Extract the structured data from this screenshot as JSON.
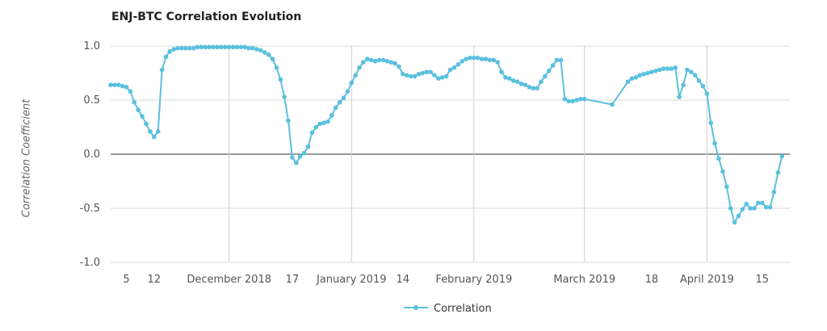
{
  "chart_data": {
    "type": "line",
    "title": "ENJ-BTC Correlation Evolution",
    "xlabel": "",
    "ylabel": "Correlation Coefficient",
    "ylim": [
      -1.0,
      1.0
    ],
    "y_ticks": [
      "1.0",
      "0.5",
      "0.0",
      "-0.5",
      "-1.0"
    ],
    "x_tick_labels": [
      {
        "date": "2018-11-05",
        "label": "5"
      },
      {
        "date": "2018-11-12",
        "label": "12"
      },
      {
        "date": "2018-12-01",
        "label": "December 2018"
      },
      {
        "date": "2018-12-17",
        "label": "17"
      },
      {
        "date": "2019-01-01",
        "label": "January 2019"
      },
      {
        "date": "2019-01-14",
        "label": "14"
      },
      {
        "date": "2019-02-01",
        "label": "February 2019"
      },
      {
        "date": "2019-03-01",
        "label": "March 2019"
      },
      {
        "date": "2019-03-18",
        "label": "18"
      },
      {
        "date": "2019-04-01",
        "label": "April 2019"
      },
      {
        "date": "2019-04-15",
        "label": "15"
      }
    ],
    "xlim": [
      "2018-11-01",
      "2019-04-22"
    ],
    "grid": true,
    "legend": "bottom",
    "series": [
      {
        "name": "Correlation",
        "color": "#5bc0de",
        "points": [
          [
            "2018-11-01",
            0.64
          ],
          [
            "2018-11-02",
            0.64
          ],
          [
            "2018-11-03",
            0.64
          ],
          [
            "2018-11-04",
            0.63
          ],
          [
            "2018-11-05",
            0.62
          ],
          [
            "2018-11-06",
            0.58
          ],
          [
            "2018-11-07",
            0.48
          ],
          [
            "2018-11-08",
            0.41
          ],
          [
            "2018-11-09",
            0.35
          ],
          [
            "2018-11-10",
            0.28
          ],
          [
            "2018-11-11",
            0.21
          ],
          [
            "2018-11-12",
            0.16
          ],
          [
            "2018-11-13",
            0.21
          ],
          [
            "2018-11-14",
            0.78
          ],
          [
            "2018-11-15",
            0.9
          ],
          [
            "2018-11-16",
            0.95
          ],
          [
            "2018-11-17",
            0.97
          ],
          [
            "2018-11-18",
            0.98
          ],
          [
            "2018-11-19",
            0.98
          ],
          [
            "2018-11-20",
            0.98
          ],
          [
            "2018-11-21",
            0.98
          ],
          [
            "2018-11-22",
            0.98
          ],
          [
            "2018-11-23",
            0.99
          ],
          [
            "2018-11-24",
            0.99
          ],
          [
            "2018-11-25",
            0.99
          ],
          [
            "2018-11-26",
            0.99
          ],
          [
            "2018-11-27",
            0.99
          ],
          [
            "2018-11-28",
            0.99
          ],
          [
            "2018-11-29",
            0.99
          ],
          [
            "2018-11-30",
            0.99
          ],
          [
            "2018-12-01",
            0.99
          ],
          [
            "2018-12-02",
            0.99
          ],
          [
            "2018-12-03",
            0.99
          ],
          [
            "2018-12-04",
            0.99
          ],
          [
            "2018-12-05",
            0.99
          ],
          [
            "2018-12-06",
            0.98
          ],
          [
            "2018-12-07",
            0.98
          ],
          [
            "2018-12-08",
            0.97
          ],
          [
            "2018-12-09",
            0.96
          ],
          [
            "2018-12-10",
            0.94
          ],
          [
            "2018-12-11",
            0.92
          ],
          [
            "2018-12-12",
            0.88
          ],
          [
            "2018-12-13",
            0.8
          ],
          [
            "2018-12-14",
            0.69
          ],
          [
            "2018-12-15",
            0.53
          ],
          [
            "2018-12-16",
            0.31
          ],
          [
            "2018-12-17",
            -0.03
          ],
          [
            "2018-12-18",
            -0.08
          ],
          [
            "2018-12-19",
            -0.02
          ],
          [
            "2018-12-20",
            0.01
          ],
          [
            "2018-12-21",
            0.07
          ],
          [
            "2018-12-22",
            0.2
          ],
          [
            "2018-12-23",
            0.25
          ],
          [
            "2018-12-24",
            0.28
          ],
          [
            "2018-12-25",
            0.29
          ],
          [
            "2018-12-26",
            0.3
          ],
          [
            "2018-12-27",
            0.36
          ],
          [
            "2018-12-28",
            0.43
          ],
          [
            "2018-12-29",
            0.48
          ],
          [
            "2018-12-30",
            0.52
          ],
          [
            "2018-12-31",
            0.58
          ],
          [
            "2019-01-01",
            0.66
          ],
          [
            "2019-01-02",
            0.73
          ],
          [
            "2019-01-03",
            0.8
          ],
          [
            "2019-01-04",
            0.85
          ],
          [
            "2019-01-05",
            0.88
          ],
          [
            "2019-01-06",
            0.87
          ],
          [
            "2019-01-07",
            0.86
          ],
          [
            "2019-01-08",
            0.87
          ],
          [
            "2019-01-09",
            0.87
          ],
          [
            "2019-01-10",
            0.86
          ],
          [
            "2019-01-11",
            0.85
          ],
          [
            "2019-01-12",
            0.84
          ],
          [
            "2019-01-13",
            0.81
          ],
          [
            "2019-01-14",
            0.74
          ],
          [
            "2019-01-15",
            0.73
          ],
          [
            "2019-01-16",
            0.72
          ],
          [
            "2019-01-17",
            0.72
          ],
          [
            "2019-01-18",
            0.74
          ],
          [
            "2019-01-19",
            0.75
          ],
          [
            "2019-01-20",
            0.76
          ],
          [
            "2019-01-21",
            0.76
          ],
          [
            "2019-01-22",
            0.73
          ],
          [
            "2019-01-23",
            0.7
          ],
          [
            "2019-01-24",
            0.71
          ],
          [
            "2019-01-25",
            0.72
          ],
          [
            "2019-01-26",
            0.78
          ],
          [
            "2019-01-27",
            0.8
          ],
          [
            "2019-01-28",
            0.83
          ],
          [
            "2019-01-29",
            0.86
          ],
          [
            "2019-01-30",
            0.88
          ],
          [
            "2019-01-31",
            0.89
          ],
          [
            "2019-02-01",
            0.89
          ],
          [
            "2019-02-02",
            0.89
          ],
          [
            "2019-02-03",
            0.88
          ],
          [
            "2019-02-04",
            0.88
          ],
          [
            "2019-02-05",
            0.87
          ],
          [
            "2019-02-06",
            0.87
          ],
          [
            "2019-02-07",
            0.85
          ],
          [
            "2019-02-08",
            0.76
          ],
          [
            "2019-02-09",
            0.71
          ],
          [
            "2019-02-10",
            0.7
          ],
          [
            "2019-02-11",
            0.68
          ],
          [
            "2019-02-12",
            0.67
          ],
          [
            "2019-02-13",
            0.65
          ],
          [
            "2019-02-14",
            0.64
          ],
          [
            "2019-02-15",
            0.62
          ],
          [
            "2019-02-16",
            0.61
          ],
          [
            "2019-02-17",
            0.61
          ],
          [
            "2019-02-18",
            0.67
          ],
          [
            "2019-02-19",
            0.72
          ],
          [
            "2019-02-20",
            0.77
          ],
          [
            "2019-02-21",
            0.82
          ],
          [
            "2019-02-22",
            0.87
          ],
          [
            "2019-02-23",
            0.87
          ],
          [
            "2019-02-24",
            0.51
          ],
          [
            "2019-02-25",
            0.49
          ],
          [
            "2019-02-26",
            0.49
          ],
          [
            "2019-02-27",
            0.5
          ],
          [
            "2019-02-28",
            0.51
          ],
          [
            "2019-03-01",
            0.51
          ],
          [
            "2019-03-08",
            0.46
          ],
          [
            "2019-03-12",
            0.67
          ],
          [
            "2019-03-13",
            0.7
          ],
          [
            "2019-03-14",
            0.71
          ],
          [
            "2019-03-15",
            0.73
          ],
          [
            "2019-03-16",
            0.74
          ],
          [
            "2019-03-17",
            0.75
          ],
          [
            "2019-03-18",
            0.76
          ],
          [
            "2019-03-19",
            0.77
          ],
          [
            "2019-03-20",
            0.78
          ],
          [
            "2019-03-21",
            0.79
          ],
          [
            "2019-03-22",
            0.79
          ],
          [
            "2019-03-23",
            0.79
          ],
          [
            "2019-03-24",
            0.8
          ],
          [
            "2019-03-25",
            0.53
          ],
          [
            "2019-03-26",
            0.64
          ],
          [
            "2019-03-27",
            0.78
          ],
          [
            "2019-03-28",
            0.76
          ],
          [
            "2019-03-29",
            0.73
          ],
          [
            "2019-03-30",
            0.68
          ],
          [
            "2019-03-31",
            0.63
          ],
          [
            "2019-04-01",
            0.56
          ],
          [
            "2019-04-02",
            0.29
          ],
          [
            "2019-04-03",
            0.1
          ],
          [
            "2019-04-04",
            -0.04
          ],
          [
            "2019-04-05",
            -0.16
          ],
          [
            "2019-04-06",
            -0.3
          ],
          [
            "2019-04-07",
            -0.5
          ],
          [
            "2019-04-08",
            -0.63
          ],
          [
            "2019-04-09",
            -0.57
          ],
          [
            "2019-04-10",
            -0.51
          ],
          [
            "2019-04-11",
            -0.46
          ],
          [
            "2019-04-12",
            -0.5
          ],
          [
            "2019-04-13",
            -0.5
          ],
          [
            "2019-04-14",
            -0.45
          ],
          [
            "2019-04-15",
            -0.45
          ],
          [
            "2019-04-16",
            -0.49
          ],
          [
            "2019-04-17",
            -0.49
          ],
          [
            "2019-04-18",
            -0.35
          ],
          [
            "2019-04-19",
            -0.17
          ],
          [
            "2019-04-20",
            -0.02
          ]
        ]
      }
    ]
  }
}
